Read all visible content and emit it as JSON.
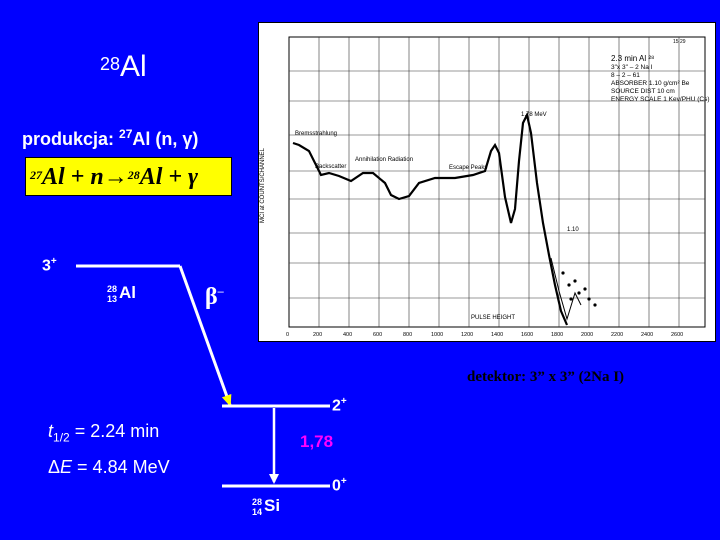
{
  "title": {
    "mass": "28",
    "symbol": "Al"
  },
  "production": {
    "prefix": "produkcja:",
    "mass": "27",
    "rest": "Al (n, γ)"
  },
  "equation": {
    "m1": "27",
    "t1": "Al + n→",
    "m2": "28",
    "t2": "Al + γ"
  },
  "parent": {
    "spin": "3",
    "parity": "+",
    "mass": "28",
    "z": "13",
    "symbol": "Al"
  },
  "decay": {
    "symbol": "β",
    "charge": "–"
  },
  "daughter": {
    "mass": "28",
    "z": "14",
    "symbol": "Si"
  },
  "levels": [
    {
      "spin": "2",
      "parity": "+"
    },
    {
      "spin": "0",
      "parity": "+"
    }
  ],
  "gamma_energy": "1,78",
  "half_life": {
    "t": "t",
    "sub": "1/2",
    "value": " = 2.24 min"
  },
  "q_value": {
    "delta": "Δ",
    "e": "E",
    "value": " = 4.84 MeV"
  },
  "detector": "detektor: 3” x 3” (2Na I)",
  "spectrum": {
    "box_lines": [
      "2.3 min Al ²⁸",
      "3\"x 3\" – 2 Na I",
      "8 – 2 – 61",
      "ABSORBER 1.10 g/cm² Be",
      "SOURCE DIST 10 cm",
      "ENERGY SCALE 1 Kev/PHU (Cs)"
    ],
    "x_ticks": [
      "0",
      "200",
      "400",
      "600",
      "800",
      "1000",
      "1200",
      "1400",
      "1600",
      "1800",
      "2000",
      "2200",
      "2400",
      "2600"
    ],
    "y_label": "MCI at COUNTS/CHANNEL",
    "x_label": "PULSE HEIGHT",
    "peak_label": "1.78 MeV",
    "annotations": [
      "Bremsstrahlung",
      "Backscatter",
      "Annihilation Radiation",
      "Escape Peaks",
      "1.10"
    ],
    "page_num": "15 29"
  },
  "colors": {
    "background": "#0000ff",
    "equation_box": "#ffff00",
    "gamma": "#ff00ff",
    "arrow_head": "#ffff00"
  }
}
